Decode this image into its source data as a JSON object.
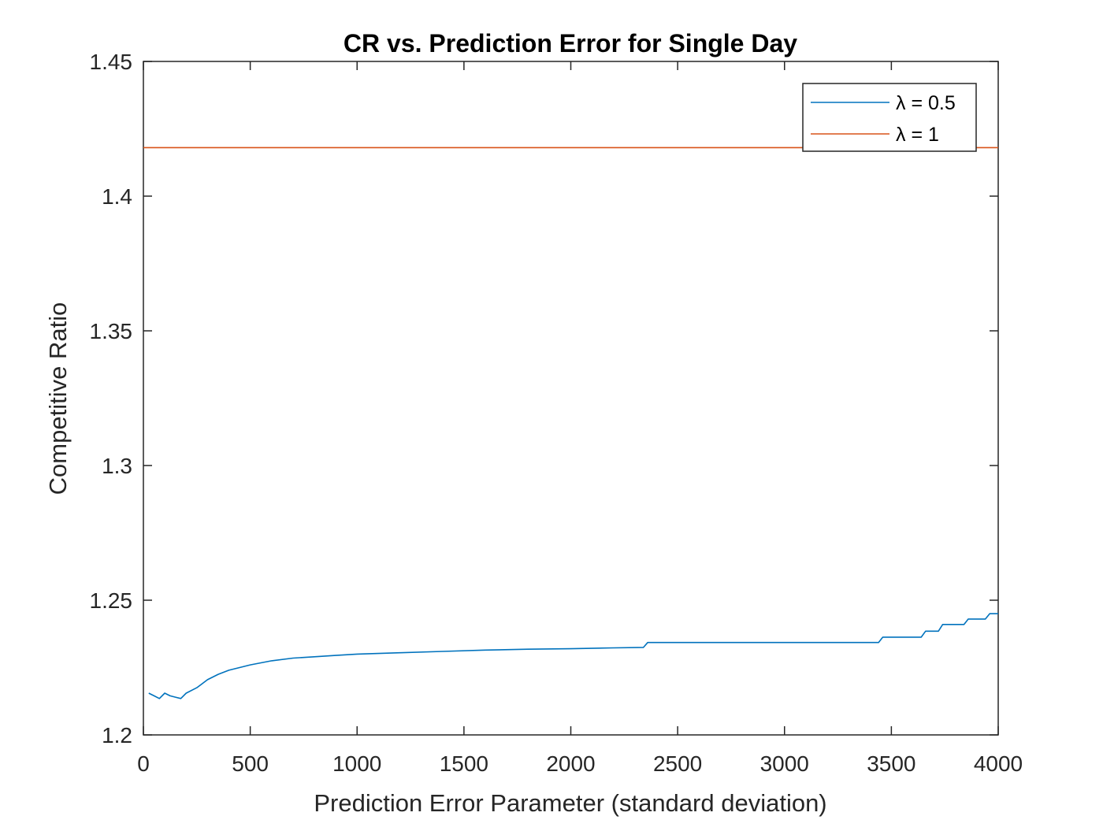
{
  "chart_data": {
    "type": "line",
    "title": "CR vs. Prediction Error for Single Day",
    "xlabel": "Prediction Error Parameter (standard deviation)",
    "ylabel": "Competitive Ratio",
    "xlim": [
      0,
      4000
    ],
    "ylim": [
      1.2,
      1.45
    ],
    "xticks": [
      0,
      500,
      1000,
      1500,
      2000,
      2500,
      3000,
      3500,
      4000
    ],
    "xtick_labels": [
      "0",
      "500",
      "1000",
      "1500",
      "2000",
      "2500",
      "3000",
      "3500",
      "4000"
    ],
    "yticks": [
      1.2,
      1.25,
      1.3,
      1.35,
      1.4,
      1.45
    ],
    "ytick_labels": [
      "1.2",
      "1.25",
      "1.3",
      "1.35",
      "1.4",
      "1.45"
    ],
    "grid": false,
    "legend_position": "top-right",
    "series": [
      {
        "name": "λ = 0.5",
        "color": "#0072BD",
        "x": [
          25,
          50,
          75,
          100,
          125,
          150,
          175,
          200,
          250,
          300,
          350,
          400,
          450,
          500,
          600,
          700,
          800,
          900,
          1000,
          1200,
          1400,
          1600,
          1800,
          2000,
          2200,
          2340,
          2360,
          2600,
          3000,
          3440,
          3460,
          3640,
          3660,
          3720,
          3740,
          3840,
          3860,
          3940,
          3960,
          4000
        ],
        "y": [
          1.2155,
          1.2145,
          1.2135,
          1.2155,
          1.2145,
          1.214,
          1.2135,
          1.2155,
          1.2175,
          1.2205,
          1.2225,
          1.224,
          1.225,
          1.226,
          1.2275,
          1.2285,
          1.229,
          1.2295,
          1.23,
          1.2305,
          1.231,
          1.2315,
          1.2318,
          1.232,
          1.2323,
          1.2325,
          1.2343,
          1.2343,
          1.2343,
          1.2343,
          1.2363,
          1.2363,
          1.2385,
          1.2385,
          1.241,
          1.241,
          1.243,
          1.243,
          1.245,
          1.245
        ]
      },
      {
        "name": "λ = 1",
        "color": "#D95319",
        "x": [
          0,
          4000
        ],
        "y": [
          1.418,
          1.418
        ]
      }
    ]
  }
}
